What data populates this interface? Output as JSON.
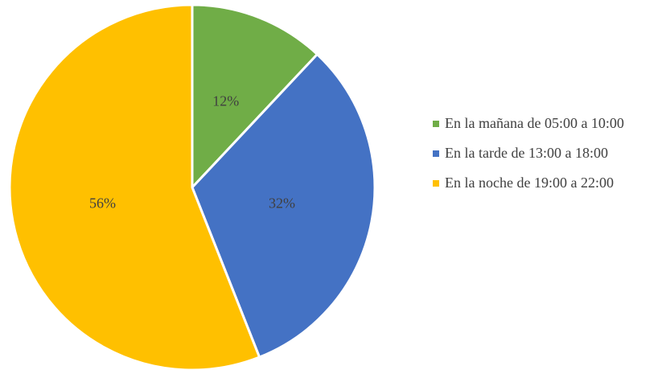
{
  "chart_data": {
    "type": "pie",
    "categories": [
      "En la mañana de 05:00 a 10:00",
      "En la tarde de 13:00 a 18:00",
      "En la noche de 19:00 a 22:00"
    ],
    "values": [
      12,
      32,
      56
    ],
    "value_labels": [
      "12%",
      "32%",
      "56%"
    ],
    "colors": [
      "#70ad47",
      "#4472c4",
      "#ffc000"
    ],
    "legend": "right"
  }
}
